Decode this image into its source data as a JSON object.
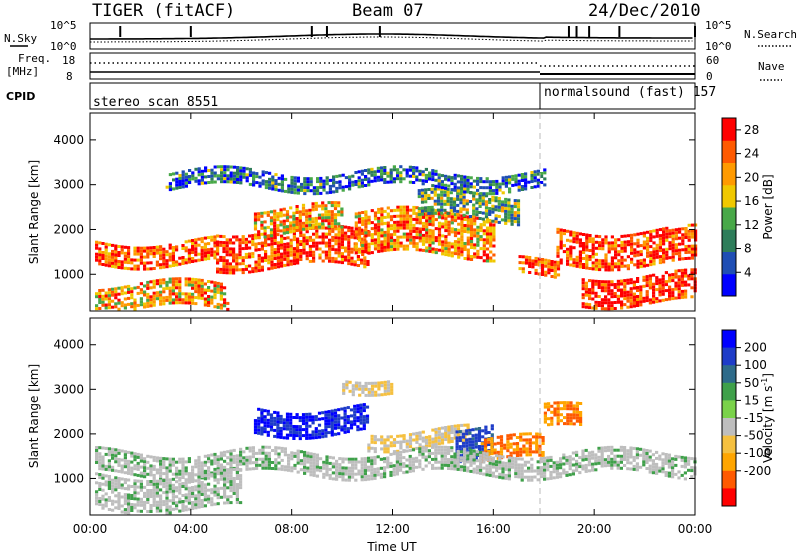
{
  "header": {
    "left_title": "TIGER (fitACF)",
    "center_title": "Beam 07",
    "right_title": "24/Dec/2010"
  },
  "top_panels": {
    "nsky_label": "N.Sky",
    "nsky_ticks": [
      "10^5",
      "10^0"
    ],
    "nsearch_label": "N.Search",
    "nsearch_ticks": [
      "10^5",
      "10^0"
    ],
    "freq_label_1": "Freq.",
    "freq_label_2": "[MHz]",
    "freq_ticks": [
      "18",
      "8"
    ],
    "nave_label": "Nave",
    "nave_ticks": [
      "60",
      "0"
    ],
    "cpid_label": "CPID",
    "cpid_segments": [
      {
        "name": "stereo_scan 8551",
        "start_hour": 0.0,
        "end_hour": 18.0
      },
      {
        "name": "normalsound (fast) 157",
        "start_hour": 18.0,
        "end_hour": 24.0
      }
    ]
  },
  "x_axis": {
    "label": "Time UT",
    "ticks": [
      "00:00",
      "04:00",
      "08:00",
      "12:00",
      "16:00",
      "20:00",
      "00:00"
    ],
    "tick_hours": [
      0,
      4,
      8,
      12,
      16,
      20,
      24
    ],
    "range_hours": [
      0,
      24
    ]
  },
  "power_panel": {
    "ylabel": "Slant Range [km]",
    "yticks": [
      "4000",
      "3000",
      "2000",
      "1000"
    ],
    "ytick_values": [
      4000,
      3000,
      2000,
      1000
    ],
    "ylim": [
      180,
      4600
    ],
    "colorbar_label": "Power [dB]",
    "colorbar_ticks": [
      "28",
      "24",
      "20",
      "16",
      "12",
      "8",
      "4"
    ],
    "colorbar_values": [
      28,
      24,
      20,
      16,
      12,
      8,
      4
    ],
    "colorbar_range": [
      0,
      30
    ],
    "colors": [
      "#0000ff",
      "#1f4eb4",
      "#2e7d5a",
      "#48a848",
      "#f0c800",
      "#ff9a00",
      "#ff5a00",
      "#ff0000"
    ]
  },
  "velocity_panel": {
    "ylabel": "Slant Range [km]",
    "yticks": [
      "4000",
      "3000",
      "2000",
      "1000"
    ],
    "ytick_values": [
      4000,
      3000,
      2000,
      1000
    ],
    "ylim": [
      180,
      4600
    ],
    "colorbar_label": "Velocity [m s",
    "colorbar_label_sup": "-1",
    "colorbar_label_end": "]",
    "colorbar_ticks": [
      "200",
      "100",
      "50",
      "15",
      "-15",
      "-50",
      "-100",
      "-200"
    ],
    "ground_scatter_color": "#bebebe",
    "colors": [
      "#ff0000",
      "#ff5a00",
      "#ffa500",
      "#f5c040",
      "#bebebe",
      "#7ad24a",
      "#3fa04a",
      "#2e6b8a",
      "#1e3cc8",
      "#0000ff"
    ]
  },
  "chart_data": {
    "type": "heatmap",
    "title": "TIGER (fitACF)   Beam 07   24/Dec/2010",
    "xlabel": "Time UT",
    "ylabel": "Slant Range [km]",
    "xlim_hours": [
      0,
      24
    ],
    "ylim_km": [
      180,
      4600
    ],
    "grid": false,
    "series": [
      {
        "name": "Power [dB]",
        "bands_note_free_values": [
          {
            "t0": 0.2,
            "t1": 5.0,
            "r0": 1250,
            "r1": 1750,
            "value": 24
          },
          {
            "t0": 5.0,
            "t1": 11.0,
            "r0": 1150,
            "r1": 2000,
            "value": 26
          },
          {
            "t0": 6.5,
            "t1": 10.0,
            "r0": 1900,
            "r1": 2500,
            "value": 20
          },
          {
            "t0": 10.5,
            "t1": 16.0,
            "r0": 1400,
            "r1": 2400,
            "value": 22
          },
          {
            "t0": 13.0,
            "t1": 17.0,
            "r0": 2200,
            "r1": 2800,
            "value": 12
          },
          {
            "t0": 17.0,
            "t1": 18.6,
            "r0": 900,
            "r1": 1300,
            "value": 26
          },
          {
            "t0": 18.5,
            "t1": 24.0,
            "r0": 1200,
            "r1": 2000,
            "value": 26
          },
          {
            "t0": 19.5,
            "t1": 24.0,
            "r0": 350,
            "r1": 1000,
            "value": 28
          },
          {
            "t0": 0.2,
            "t1": 5.5,
            "r0": 250,
            "r1": 800,
            "value": 20
          },
          {
            "t0": 3.0,
            "t1": 18.0,
            "r0": 2900,
            "r1": 3300,
            "value": 8
          }
        ]
      },
      {
        "name": "Velocity [m s-1]",
        "bands_note_free_values": [
          {
            "t0": 6.5,
            "t1": 11.0,
            "r0": 2000,
            "r1": 2600,
            "value": 200
          },
          {
            "t0": 11.0,
            "t1": 15.0,
            "r0": 1700,
            "r1": 2100,
            "value": -50
          },
          {
            "t0": 14.5,
            "t1": 16.0,
            "r0": 1500,
            "r1": 2200,
            "value": 120
          },
          {
            "t0": 15.5,
            "t1": 18.0,
            "r0": 1400,
            "r1": 1900,
            "value": -200
          },
          {
            "t0": 18.0,
            "t1": 19.5,
            "r0": 2100,
            "r1": 2600,
            "value": -200
          },
          {
            "t0": 0.2,
            "t1": 24.0,
            "r0": 1100,
            "r1": 1600,
            "value": 0
          },
          {
            "t0": 0.2,
            "t1": 6.0,
            "r0": 300,
            "r1": 1100,
            "value": 0
          },
          {
            "t0": 10.0,
            "t1": 12.0,
            "r0": 3000,
            "r1": 3300,
            "value": -50
          }
        ]
      }
    ]
  }
}
